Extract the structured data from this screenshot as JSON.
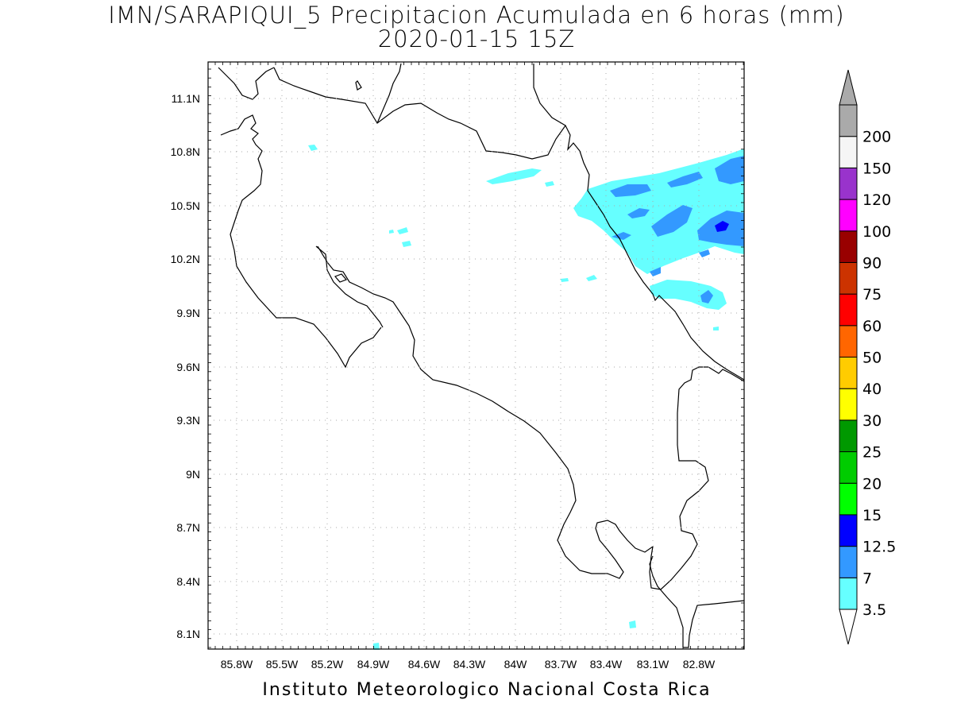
{
  "title_line1": "IMN/SARAPIQUI_5 Precipitacion Acumulada en 6 horas (mm)",
  "title_line2": "2020-01-15 15Z",
  "footer": "Instituto Meteorologico Nacional Costa Rica",
  "map": {
    "lon_range": [
      -86.05,
      -82.5
    ],
    "lat_range": [
      8.0,
      11.3
    ],
    "lon_ticks": [
      "85.8W",
      "85.5W",
      "85.2W",
      "84.9W",
      "84.6W",
      "84.3W",
      "84W",
      "83.7W",
      "83.4W",
      "83.1W",
      "82.8W"
    ],
    "lat_ticks": [
      "11.1N",
      "10.8N",
      "10.5N",
      "10.2N",
      "9.9N",
      "9.6N",
      "9.3N",
      "9N",
      "8.7N",
      "8.4N",
      "8.1N"
    ],
    "grid": true,
    "grid_style": "dotted"
  },
  "colorbar": {
    "labels": [
      "3.5",
      "7",
      "12.5",
      "15",
      "20",
      "25",
      "30",
      "40",
      "50",
      "60",
      "75",
      "90",
      "100",
      "120",
      "150",
      "200"
    ],
    "colors": [
      "#66ffff",
      "#3399ff",
      "#0000ff",
      "#00ff00",
      "#00cc00",
      "#009900",
      "#ffff00",
      "#ffcc00",
      "#ff6600",
      "#ff0000",
      "#cc3300",
      "#990000",
      "#ff00ff",
      "#9933cc",
      "#f5f5f5",
      "#aaaaaa"
    ],
    "under_color": "#ffffff",
    "over_color": "#aaaaaa"
  }
}
